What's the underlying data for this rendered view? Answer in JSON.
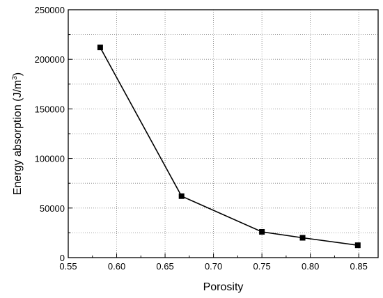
{
  "chart_data": {
    "type": "line",
    "title": "",
    "xlabel": "Porosity",
    "ylabel_main": "Energy absorption (J/m",
    "ylabel_sup": "3",
    "ylabel_end": ")",
    "xlim": [
      0.55,
      0.87
    ],
    "ylim": [
      0,
      250000
    ],
    "x_ticks": [
      0.55,
      0.6,
      0.65,
      0.7,
      0.75,
      0.8,
      0.85
    ],
    "x_tick_labels": [
      "0.55",
      "0.60",
      "0.65",
      "0.70",
      "0.75",
      "0.80",
      "0.85"
    ],
    "y_ticks": [
      0,
      50000,
      100000,
      150000,
      200000,
      250000
    ],
    "y_tick_labels": [
      "0",
      "50000",
      "100000",
      "150000",
      "200000",
      "250000"
    ],
    "y_grid": [
      25000,
      75000,
      125000,
      175000,
      225000
    ],
    "grid": true,
    "series": [
      {
        "x": [
          0.583,
          0.667,
          0.75,
          0.792,
          0.849
        ],
        "y": [
          212000,
          62000,
          26000,
          20000,
          12500
        ]
      }
    ],
    "colors": {
      "line": "#000000",
      "marker": "#000000",
      "grid": "#808080"
    }
  }
}
